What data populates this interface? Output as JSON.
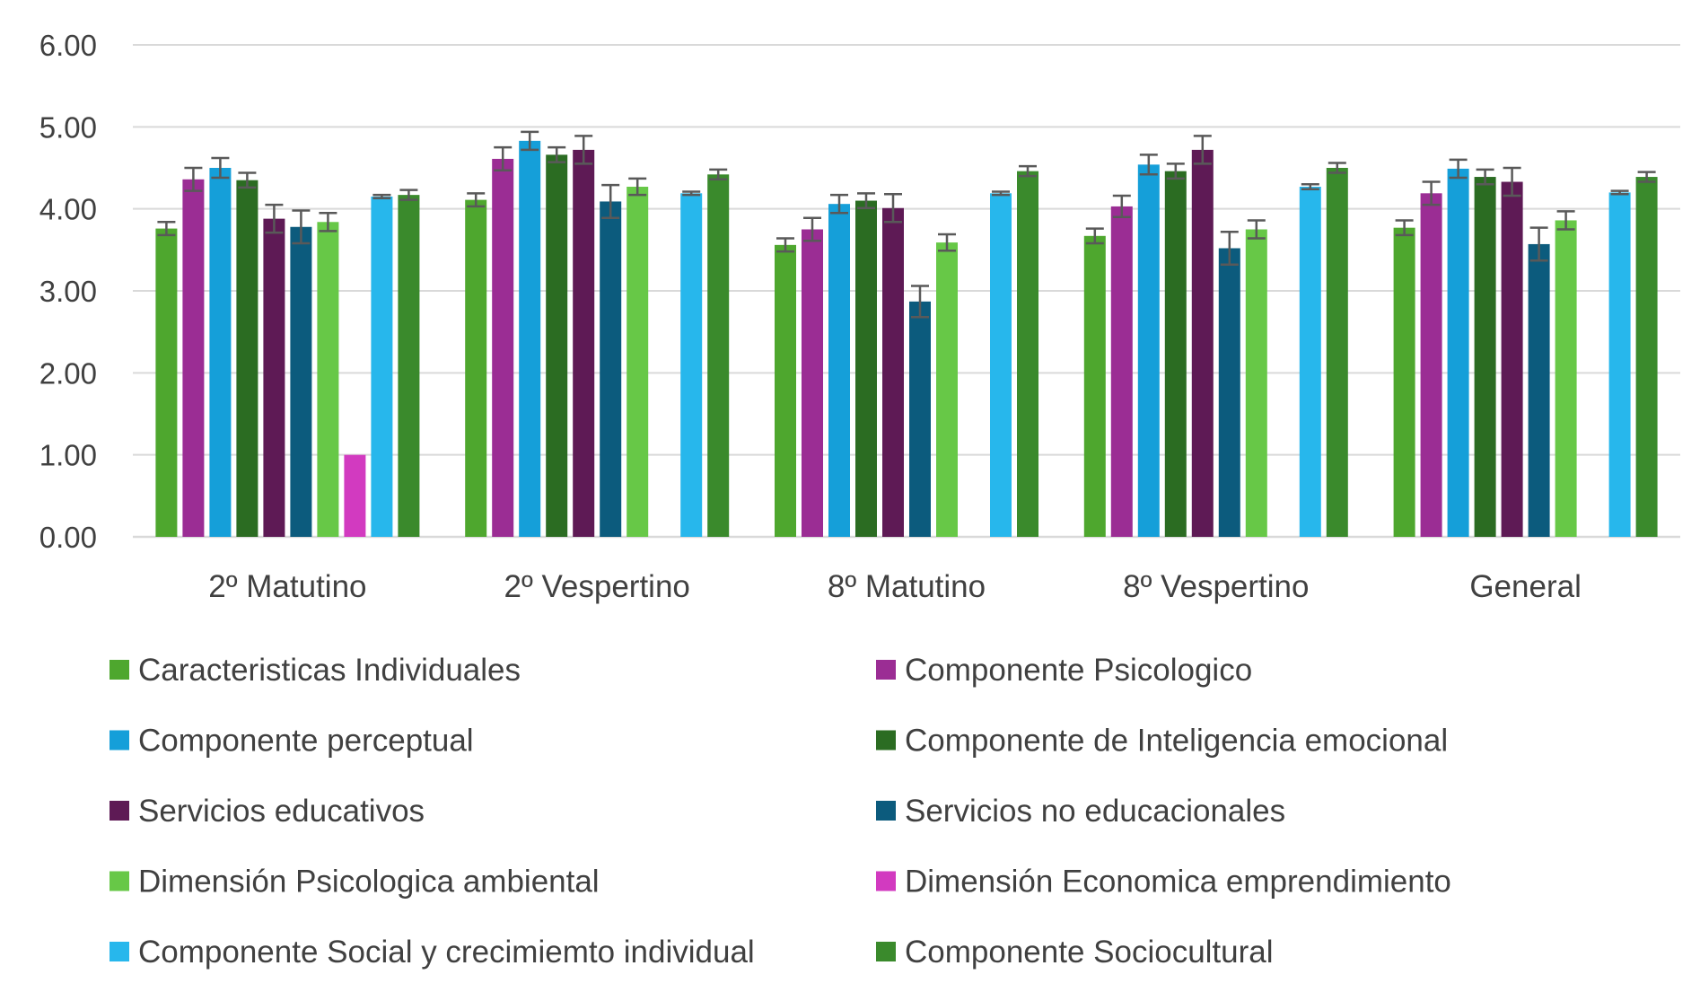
{
  "chart_data": {
    "type": "bar",
    "title": "",
    "xlabel": "",
    "ylabel": "",
    "ylim": [
      0,
      6
    ],
    "yticks": [
      "0.00",
      "1.00",
      "2.00",
      "3.00",
      "4.00",
      "5.00",
      "6.00"
    ],
    "grid": true,
    "legend_position": "bottom",
    "categories": [
      "2º Matutino",
      "2º Vespertino",
      "8º Matutino",
      "8º Vespertino",
      "General"
    ],
    "series": [
      {
        "name": "Caracteristicas Individuales",
        "color": "#4ea72e",
        "values": [
          3.76,
          4.11,
          3.56,
          3.67,
          3.77
        ],
        "errors": [
          0.08,
          0.08,
          0.08,
          0.09,
          0.09
        ]
      },
      {
        "name": "Componente Psicologico",
        "color": "#9b2d94",
        "values": [
          4.36,
          4.61,
          3.75,
          4.03,
          4.19
        ],
        "errors": [
          0.14,
          0.14,
          0.14,
          0.13,
          0.14
        ]
      },
      {
        "name": "Componente perceptual",
        "color": "#159fd9",
        "values": [
          4.5,
          4.83,
          4.06,
          4.54,
          4.49
        ],
        "errors": [
          0.12,
          0.11,
          0.11,
          0.12,
          0.11
        ]
      },
      {
        "name": "Componente de Inteligencia emocional",
        "color": "#2b6c22",
        "values": [
          4.35,
          4.66,
          4.1,
          4.46,
          4.39
        ],
        "errors": [
          0.09,
          0.09,
          0.09,
          0.09,
          0.09
        ]
      },
      {
        "name": "Servicios educativos",
        "color": "#5e1a55",
        "values": [
          3.88,
          4.72,
          4.01,
          4.72,
          4.33
        ],
        "errors": [
          0.17,
          0.17,
          0.17,
          0.17,
          0.17
        ]
      },
      {
        "name": "Servicios no educacionales",
        "color": "#0c5b7d",
        "values": [
          3.78,
          4.09,
          2.87,
          3.52,
          3.57
        ],
        "errors": [
          0.2,
          0.2,
          0.19,
          0.2,
          0.2
        ]
      },
      {
        "name": "Dimensión Psicologica ambiental",
        "color": "#67c847",
        "values": [
          3.84,
          4.27,
          3.59,
          3.75,
          3.86
        ],
        "errors": [
          0.11,
          0.1,
          0.1,
          0.11,
          0.11
        ]
      },
      {
        "name": "Dimensión Economica emprendimiento",
        "color": "#d23ac0",
        "values": [
          1.0,
          null,
          null,
          null,
          null
        ],
        "errors": [
          0,
          null,
          null,
          null,
          null
        ]
      },
      {
        "name": "Componente Social y crecimiemto individual",
        "color": "#27b7ec",
        "values": [
          4.15,
          4.19,
          4.19,
          4.27,
          4.2
        ],
        "errors": [
          0.02,
          0.02,
          0.02,
          0.03,
          0.02
        ]
      },
      {
        "name": "Componente Sociocultural",
        "color": "#3a8a2c",
        "values": [
          4.17,
          4.42,
          4.46,
          4.5,
          4.39
        ],
        "errors": [
          0.06,
          0.06,
          0.06,
          0.06,
          0.06
        ]
      }
    ]
  }
}
